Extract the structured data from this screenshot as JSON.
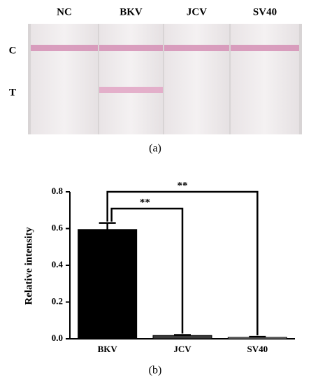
{
  "strip_figure": {
    "columns": [
      "NC",
      "BKV",
      "JCV",
      "SV40"
    ],
    "rows": [
      "C",
      "T"
    ],
    "caption": "(a)"
  },
  "chart_data": {
    "type": "bar",
    "caption": "(b)",
    "y_label": "Relative intensity",
    "categories": [
      "BKV",
      "JCV",
      "SV40"
    ],
    "values": [
      0.595,
      0.018,
      0.008
    ],
    "errors": [
      0.035,
      0.003,
      0.003
    ],
    "colors": [
      "#000000",
      "#3a3a3a",
      "#9a9a9a"
    ],
    "ylim": [
      0,
      0.8
    ],
    "yticks": [
      {
        "value": 0,
        "label": "0.0"
      },
      0.2,
      0.4,
      0.6,
      0.8
    ],
    "annotations": [
      "**",
      "**"
    ]
  }
}
